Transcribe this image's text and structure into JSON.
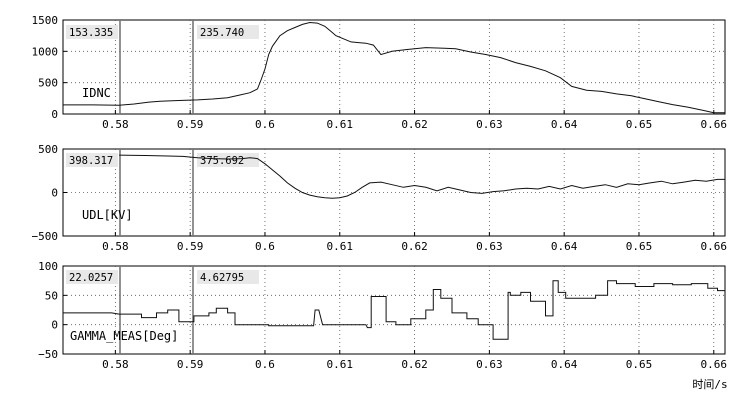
{
  "chart_data": [
    {
      "type": "line",
      "series_label": "IDNC",
      "ylim": [
        0,
        1500
      ],
      "yticks": [
        0,
        500,
        1000,
        1500
      ],
      "xlim": [
        0.573,
        0.6615
      ],
      "xticks": [
        0.58,
        0.59,
        0.6,
        0.61,
        0.62,
        0.63,
        0.64,
        0.65,
        0.66
      ],
      "xtick_labels": [
        "0.58",
        "0.59",
        "0.6",
        "0.61",
        "0.62",
        "0.63",
        "0.64",
        "0.65",
        "0.66"
      ],
      "cursor_values": [
        "153.335",
        "235.740"
      ],
      "x": [
        0.573,
        0.577,
        0.5805,
        0.5825,
        0.5845,
        0.586,
        0.5885,
        0.591,
        0.593,
        0.595,
        0.5965,
        0.598,
        0.599,
        0.5995,
        0.6,
        0.6005,
        0.601,
        0.602,
        0.603,
        0.604,
        0.605,
        0.606,
        0.607,
        0.608,
        0.609,
        0.6095,
        0.6105,
        0.6115,
        0.6125,
        0.6135,
        0.6145,
        0.6155,
        0.617,
        0.619,
        0.6215,
        0.624,
        0.6255,
        0.6275,
        0.6295,
        0.6315,
        0.6335,
        0.6355,
        0.6375,
        0.6395,
        0.641,
        0.643,
        0.645,
        0.647,
        0.649,
        0.6505,
        0.6525,
        0.6545,
        0.6565,
        0.6585,
        0.66,
        0.6615
      ],
      "y": [
        145,
        145,
        140,
        160,
        190,
        205,
        215,
        225,
        240,
        260,
        300,
        340,
        400,
        550,
        720,
        950,
        1080,
        1250,
        1330,
        1380,
        1430,
        1460,
        1450,
        1400,
        1300,
        1250,
        1200,
        1150,
        1140,
        1130,
        1100,
        950,
        1000,
        1030,
        1060,
        1050,
        1040,
        990,
        950,
        900,
        820,
        760,
        690,
        580,
        440,
        380,
        360,
        320,
        290,
        250,
        200,
        150,
        110,
        60,
        20,
        20
      ]
    },
    {
      "type": "line",
      "series_label": "UDL[KV]",
      "ylim": [
        -500,
        500
      ],
      "yticks": [
        -500,
        0,
        500
      ],
      "xlim": [
        0.573,
        0.6615
      ],
      "xticks": [
        0.58,
        0.59,
        0.6,
        0.61,
        0.62,
        0.63,
        0.64,
        0.65,
        0.66
      ],
      "xtick_labels": [
        "0.58",
        "0.59",
        "0.6",
        "0.61",
        "0.62",
        "0.63",
        "0.64",
        "0.65",
        "0.66"
      ],
      "cursor_values": [
        "398.317",
        "375.692"
      ],
      "x": [
        0.5805,
        0.584,
        0.587,
        0.589,
        0.591,
        0.593,
        0.595,
        0.597,
        0.598,
        0.599,
        0.6,
        0.601,
        0.602,
        0.603,
        0.604,
        0.605,
        0.606,
        0.607,
        0.608,
        0.609,
        0.61,
        0.611,
        0.612,
        0.613,
        0.614,
        0.6155,
        0.617,
        0.6185,
        0.62,
        0.6215,
        0.623,
        0.6245,
        0.626,
        0.6275,
        0.629,
        0.6305,
        0.632,
        0.6335,
        0.635,
        0.6365,
        0.638,
        0.6395,
        0.641,
        0.6425,
        0.644,
        0.6455,
        0.647,
        0.6485,
        0.65,
        0.6515,
        0.653,
        0.6545,
        0.656,
        0.6575,
        0.659,
        0.6605,
        0.6615
      ],
      "y": [
        430,
        425,
        420,
        415,
        400,
        390,
        385,
        390,
        400,
        390,
        330,
        260,
        190,
        110,
        50,
        0,
        -30,
        -50,
        -60,
        -65,
        -60,
        -40,
        0,
        60,
        110,
        120,
        90,
        60,
        80,
        60,
        20,
        60,
        30,
        0,
        -10,
        10,
        20,
        40,
        50,
        40,
        70,
        40,
        80,
        50,
        70,
        90,
        60,
        100,
        90,
        110,
        130,
        100,
        120,
        140,
        130,
        150,
        150
      ]
    },
    {
      "type": "line",
      "series_label": "GAMMA_MEAS[Deg]",
      "ylim": [
        -50,
        100
      ],
      "yticks": [
        -50,
        0,
        50,
        100
      ],
      "xlim": [
        0.573,
        0.6615
      ],
      "xticks": [
        0.58,
        0.59,
        0.6,
        0.61,
        0.62,
        0.63,
        0.64,
        0.65,
        0.66
      ],
      "xtick_labels": [
        "0.58",
        "0.59",
        "0.6",
        "0.61",
        "0.62",
        "0.63",
        "0.64",
        "0.65",
        "0.66"
      ],
      "cursor_values": [
        "22.0257",
        "4.62795"
      ],
      "x": [
        0.573,
        0.5795,
        0.5805,
        0.5835,
        0.5835,
        0.5855,
        0.5855,
        0.587,
        0.587,
        0.5885,
        0.5885,
        0.5905,
        0.5905,
        0.5925,
        0.5925,
        0.5935,
        0.5935,
        0.595,
        0.595,
        0.596,
        0.596,
        0.6005,
        0.6005,
        0.6065,
        0.6067,
        0.6072,
        0.6077,
        0.6135,
        0.6137,
        0.6142,
        0.6142,
        0.6162,
        0.6162,
        0.6175,
        0.6175,
        0.6195,
        0.6195,
        0.6215,
        0.6215,
        0.6225,
        0.6225,
        0.6235,
        0.6235,
        0.625,
        0.625,
        0.627,
        0.627,
        0.6285,
        0.6285,
        0.6305,
        0.6305,
        0.6325,
        0.6325,
        0.6328,
        0.6328,
        0.6342,
        0.6342,
        0.6355,
        0.6355,
        0.6375,
        0.6375,
        0.6385,
        0.6385,
        0.6392,
        0.6392,
        0.6402,
        0.6402,
        0.642,
        0.642,
        0.6442,
        0.6442,
        0.6458,
        0.6458,
        0.647,
        0.647,
        0.6495,
        0.6495,
        0.652,
        0.652,
        0.6545,
        0.6545,
        0.657,
        0.657,
        0.6592,
        0.6592,
        0.6605,
        0.6605,
        0.6615
      ],
      "y": [
        20,
        20,
        18,
        18,
        12,
        12,
        20,
        20,
        25,
        25,
        5,
        5,
        15,
        15,
        20,
        20,
        28,
        28,
        20,
        20,
        0,
        0,
        -2,
        -2,
        25,
        25,
        0,
        0,
        -5,
        -5,
        48,
        48,
        5,
        5,
        0,
        0,
        10,
        10,
        25,
        25,
        60,
        60,
        45,
        45,
        20,
        20,
        10,
        10,
        0,
        0,
        -25,
        -25,
        55,
        55,
        50,
        50,
        55,
        55,
        40,
        40,
        15,
        15,
        75,
        75,
        55,
        55,
        45,
        45,
        45,
        45,
        50,
        50,
        75,
        75,
        70,
        70,
        65,
        65,
        70,
        70,
        68,
        68,
        70,
        70,
        62,
        62,
        58,
        58
      ]
    }
  ],
  "x_axis_label": "时间/s"
}
